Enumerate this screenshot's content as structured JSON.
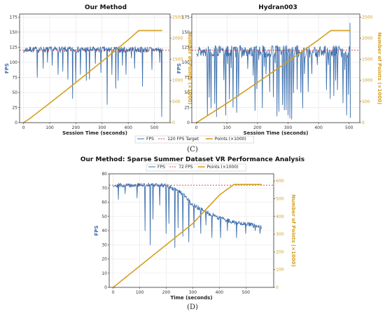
{
  "colors": {
    "fps": "#3c6fae",
    "target": "#d23c3c",
    "points": "#d4a020",
    "grid": "#e4e4e4",
    "axis": "#333333"
  },
  "labels": {
    "panel_c": "(C)",
    "panel_d": "(D)"
  },
  "chart_data": [
    {
      "type": "line",
      "title": "Our Method",
      "xlabel": "Session Time (seconds)",
      "ylabel": "FPS",
      "y2label": "Number of Points (×1000)",
      "xlim": [
        -15,
        560
      ],
      "ylim": [
        0,
        180
      ],
      "y2lim": [
        0,
        2571
      ],
      "xticks": [
        0,
        100,
        200,
        300,
        400,
        500
      ],
      "yticks": [
        0,
        25,
        50,
        75,
        100,
        125,
        150,
        175
      ],
      "y2ticks": [
        0,
        500,
        1000,
        1500,
        2000,
        2500
      ],
      "grid": true,
      "target_fps": 120,
      "fps": {
        "seed": 7,
        "base": 121,
        "noise": 5,
        "x_end": 530,
        "drops": [
          [
            52,
            75
          ],
          [
            75,
            90
          ],
          [
            92,
            100
          ],
          [
            110,
            95
          ],
          [
            132,
            80
          ],
          [
            150,
            85
          ],
          [
            170,
            72
          ],
          [
            188,
            40
          ],
          [
            200,
            68
          ],
          [
            218,
            80
          ],
          [
            240,
            70
          ],
          [
            252,
            72
          ],
          [
            275,
            98
          ],
          [
            296,
            83
          ],
          [
            320,
            30
          ],
          [
            338,
            80
          ],
          [
            352,
            57
          ],
          [
            362,
            70
          ],
          [
            378,
            95
          ],
          [
            392,
            80
          ],
          [
            412,
            107
          ],
          [
            425,
            90
          ],
          [
            455,
            60
          ],
          [
            490,
            88
          ],
          [
            520,
            100
          ],
          [
            528,
            10
          ]
        ]
      },
      "series": [
        {
          "name": "FPS",
          "role": "fps"
        },
        {
          "name": "120 FPS Target",
          "role": "target",
          "values": [
            120
          ]
        },
        {
          "name": "Points (×1000)",
          "role": "points",
          "x": [
            0,
            20,
            100,
            200,
            300,
            400,
            440,
            530
          ],
          "values": [
            0,
            80,
            460,
            950,
            1450,
            1960,
            2180,
            2180
          ]
        }
      ]
    },
    {
      "type": "line",
      "title": "Hydran003",
      "xlabel": "Session Time (seconds)",
      "ylabel": "FPS",
      "y2label": "Number of Points (×1000)",
      "xlim": [
        -15,
        535
      ],
      "ylim": [
        0,
        180
      ],
      "y2lim": [
        0,
        2571
      ],
      "xticks": [
        0,
        100,
        200,
        300,
        400,
        500
      ],
      "yticks": [
        0,
        25,
        50,
        75,
        100,
        125,
        150,
        175
      ],
      "y2ticks": [
        0,
        500,
        1000,
        1500,
        2000,
        2500
      ],
      "grid": true,
      "target_fps": 120,
      "fps": {
        "seed": 13,
        "base": 118,
        "noise": 10,
        "x_end": 505,
        "drop_every": 4,
        "drop_floor": 5,
        "x_spike": 503
      },
      "series": [
        {
          "name": "FPS",
          "role": "fps"
        },
        {
          "name": "120 FPS Target",
          "role": "target",
          "values": [
            120
          ]
        },
        {
          "name": "Points (×1000)",
          "role": "points",
          "x": [
            0,
            20,
            100,
            200,
            300,
            400,
            440,
            505
          ],
          "values": [
            0,
            90,
            460,
            950,
            1450,
            1960,
            2180,
            2180
          ]
        }
      ]
    },
    {
      "type": "line",
      "title": "Our Method: Sparse Summer Dataset VR Performance Analysis",
      "xlabel": "Time (seconds)",
      "ylabel": "FPS",
      "y2label": "Number of Points (×1000)",
      "xlim": [
        -15,
        605
      ],
      "ylim": [
        0,
        80
      ],
      "y2lim": [
        0,
        640
      ],
      "xticks": [
        0,
        100,
        200,
        300,
        400,
        500
      ],
      "yticks": [
        0,
        10,
        20,
        30,
        40,
        50,
        60,
        70,
        80
      ],
      "y2ticks": [
        0,
        100,
        200,
        300,
        400,
        500,
        600
      ],
      "grid": true,
      "target_fps": 72,
      "fps": {
        "seed": 29,
        "x_end": 560,
        "trend": [
          [
            0,
            72
          ],
          [
            200,
            72
          ],
          [
            260,
            66
          ],
          [
            300,
            58
          ],
          [
            350,
            53
          ],
          [
            400,
            49
          ],
          [
            450,
            46
          ],
          [
            500,
            45
          ],
          [
            560,
            42
          ]
        ],
        "noise": 1.5,
        "drops": [
          [
            20,
            62
          ],
          [
            45,
            66
          ],
          [
            90,
            63
          ],
          [
            120,
            40
          ],
          [
            140,
            30
          ],
          [
            150,
            48
          ],
          [
            175,
            58
          ],
          [
            200,
            38
          ],
          [
            210,
            45
          ],
          [
            232,
            28
          ],
          [
            245,
            42
          ],
          [
            262,
            36
          ],
          [
            285,
            32
          ],
          [
            305,
            42
          ],
          [
            330,
            38
          ],
          [
            350,
            44
          ],
          [
            372,
            35
          ],
          [
            405,
            35
          ],
          [
            430,
            40
          ],
          [
            465,
            35
          ],
          [
            500,
            38
          ],
          [
            535,
            40
          ],
          [
            553,
            38
          ]
        ]
      },
      "series": [
        {
          "name": "FPS",
          "role": "fps"
        },
        {
          "name": "72 FPS",
          "role": "target",
          "values": [
            72
          ]
        },
        {
          "name": "Points (×1000)",
          "role": "points",
          "x": [
            0,
            100,
            200,
            300,
            400,
            455,
            560
          ],
          "values": [
            0,
            120,
            240,
            360,
            520,
            580,
            580
          ]
        }
      ]
    }
  ]
}
